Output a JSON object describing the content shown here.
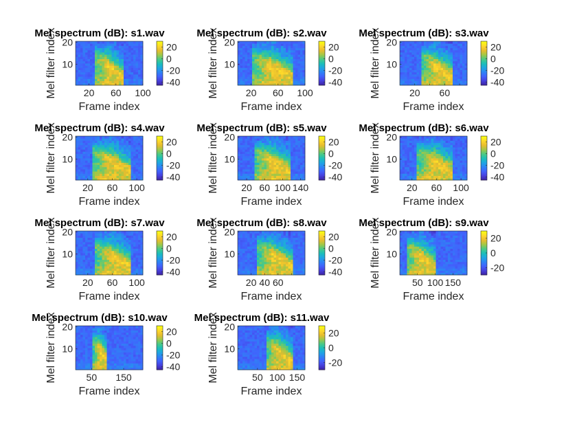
{
  "colormap": [
    "#3e26a8",
    "#4742e0",
    "#4163fd",
    "#2d85f4",
    "#1ea7e1",
    "#1dbfb7",
    "#4bc985",
    "#9fc848",
    "#e6bc2e",
    "#fcd62c",
    "#f9fb15"
  ],
  "chart_data": [
    {
      "type": "heatmap",
      "title": "Mel spectrum (dB): s1.wav",
      "xlabel": "Frame index",
      "ylabel": "Mel filter index",
      "xlim": [
        0,
        100
      ],
      "ylim": [
        0.5,
        20.5
      ],
      "xticks": [
        20,
        60,
        100
      ],
      "xtick_labels": [
        "20",
        "60",
        "100"
      ],
      "yticks": [
        10,
        20
      ],
      "ytick_labels": [
        "10",
        "20"
      ],
      "clim": [
        -45,
        30
      ],
      "cticks": [
        20,
        0,
        -20,
        -40
      ],
      "ctick_labels": [
        "20",
        "0",
        "-20",
        "-40"
      ],
      "speech_frames": [
        28,
        72
      ]
    },
    {
      "type": "heatmap",
      "title": "Mel spectrum (dB): s2.wav",
      "xlabel": "Frame index",
      "ylabel": "Mel filter index",
      "xlim": [
        0,
        100
      ],
      "ylim": [
        0.5,
        20.5
      ],
      "xticks": [
        20,
        60,
        100
      ],
      "xtick_labels": [
        "20",
        "60",
        "100"
      ],
      "yticks": [
        10,
        20
      ],
      "ytick_labels": [
        "10",
        "20"
      ],
      "clim": [
        -45,
        30
      ],
      "cticks": [
        20,
        0,
        -20,
        -40
      ],
      "ctick_labels": [
        "20",
        "0",
        "-20",
        "-40"
      ],
      "speech_frames": [
        22,
        82
      ]
    },
    {
      "type": "heatmap",
      "title": "Mel spectrum (dB): s3.wav",
      "xlabel": "Frame index",
      "ylabel": "Mel filter index",
      "xlim": [
        0,
        90
      ],
      "ylim": [
        0.5,
        20.5
      ],
      "xticks": [
        20,
        40,
        60,
        80
      ],
      "xtick_labels": [
        "20",
        "",
        "60",
        ""
      ],
      "yticks": [
        10,
        20
      ],
      "ytick_labels": [
        "10",
        "20"
      ],
      "clim": [
        -45,
        30
      ],
      "cticks": [
        20,
        0,
        -20,
        -40
      ],
      "ctick_labels": [
        "20",
        "0",
        "-20",
        "-40"
      ],
      "speech_frames": [
        30,
        70
      ]
    },
    {
      "type": "heatmap",
      "title": "Mel spectrum (dB): s4.wav",
      "xlabel": "Frame index",
      "ylabel": "Mel filter index",
      "xlim": [
        0,
        110
      ],
      "ylim": [
        0.5,
        20.5
      ],
      "xticks": [
        20,
        60,
        100
      ],
      "xtick_labels": [
        "20",
        "60",
        "100"
      ],
      "yticks": [
        10,
        20
      ],
      "ytick_labels": [
        "10",
        "20"
      ],
      "clim": [
        -45,
        30
      ],
      "cticks": [
        20,
        0,
        -20,
        -40
      ],
      "ctick_labels": [
        "20",
        "0",
        "-20",
        "-40"
      ],
      "speech_frames": [
        28,
        90
      ]
    },
    {
      "type": "heatmap",
      "title": "Mel spectrum (dB): s5.wav",
      "xlabel": "Frame index",
      "ylabel": "Mel filter index",
      "xlim": [
        0,
        150
      ],
      "ylim": [
        0.5,
        20.5
      ],
      "xticks": [
        20,
        60,
        100,
        140
      ],
      "xtick_labels": [
        "20",
        "60",
        "100",
        "140"
      ],
      "yticks": [
        10,
        20
      ],
      "ytick_labels": [
        "10",
        "20"
      ],
      "clim": [
        -45,
        30
      ],
      "cticks": [
        20,
        0,
        -20,
        -40
      ],
      "ctick_labels": [
        "20",
        "0",
        "-20",
        "-40"
      ],
      "speech_frames": [
        38,
        120
      ]
    },
    {
      "type": "heatmap",
      "title": "Mel spectrum (dB): s6.wav",
      "xlabel": "Frame index",
      "ylabel": "Mel filter index",
      "xlim": [
        0,
        110
      ],
      "ylim": [
        0.5,
        20.5
      ],
      "xticks": [
        20,
        60,
        100
      ],
      "xtick_labels": [
        "20",
        "60",
        "100"
      ],
      "yticks": [
        10,
        20
      ],
      "ytick_labels": [
        "10",
        "20"
      ],
      "clim": [
        -45,
        30
      ],
      "cticks": [
        20,
        0,
        -20,
        -40
      ],
      "ctick_labels": [
        "20",
        "0",
        "-20",
        "-40"
      ],
      "speech_frames": [
        28,
        88
      ]
    },
    {
      "type": "heatmap",
      "title": "Mel spectrum (dB): s7.wav",
      "xlabel": "Frame index",
      "ylabel": "Mel filter index",
      "xlim": [
        0,
        110
      ],
      "ylim": [
        0.5,
        20.5
      ],
      "xticks": [
        20,
        60,
        100
      ],
      "xtick_labels": [
        "20",
        "60",
        "100"
      ],
      "yticks": [
        10,
        20
      ],
      "ytick_labels": [
        "10",
        "20"
      ],
      "clim": [
        -45,
        30
      ],
      "cticks": [
        20,
        0,
        -20,
        -40
      ],
      "ctick_labels": [
        "20",
        "0",
        "-20",
        "-40"
      ],
      "speech_frames": [
        32,
        92
      ]
    },
    {
      "type": "heatmap",
      "title": "Mel spectrum (dB): s8.wav",
      "xlabel": "Frame index",
      "ylabel": "Mel filter index",
      "xlim": [
        0,
        100
      ],
      "ylim": [
        0.5,
        20.5
      ],
      "xticks": [
        20,
        40,
        60,
        80
      ],
      "xtick_labels": [
        "20",
        "40",
        "60",
        ""
      ],
      "yticks": [
        10,
        20
      ],
      "ytick_labels": [
        "10",
        "20"
      ],
      "clim": [
        -45,
        30
      ],
      "cticks": [
        20,
        0,
        -20,
        -40
      ],
      "ctick_labels": [
        "20",
        "0",
        "-20",
        "-40"
      ],
      "speech_frames": [
        28,
        82
      ]
    },
    {
      "type": "heatmap",
      "title": "Mel spectrum (dB): s9.wav",
      "xlabel": "Frame index",
      "ylabel": "Mel filter index",
      "xlim": [
        0,
        190
      ],
      "ylim": [
        0.5,
        20.5
      ],
      "xticks": [
        50,
        100,
        150
      ],
      "xtick_labels": [
        "50",
        "100",
        "150"
      ],
      "yticks": [
        10,
        20
      ],
      "ytick_labels": [
        "10",
        "20"
      ],
      "clim": [
        -30,
        30
      ],
      "cticks": [
        20,
        0,
        -20
      ],
      "ctick_labels": [
        "20",
        "0",
        "-20"
      ],
      "speech_frames": [
        20,
        100
      ]
    },
    {
      "type": "heatmap",
      "title": "Mel spectrum (dB): s10.wav",
      "xlabel": "Frame index",
      "ylabel": "Mel filter index",
      "xlim": [
        0,
        210
      ],
      "ylim": [
        0.5,
        20.5
      ],
      "xticks": [
        50,
        150
      ],
      "xtick_labels": [
        "50",
        "150"
      ],
      "yticks": [
        10,
        20
      ],
      "ytick_labels": [
        "10",
        "20"
      ],
      "clim": [
        -45,
        30
      ],
      "cticks": [
        20,
        0,
        -20,
        -40
      ],
      "ctick_labels": [
        "20",
        "0",
        "-20",
        "-40"
      ],
      "speech_frames": [
        55,
        100
      ]
    },
    {
      "type": "heatmap",
      "title": "Mel spectrum (dB): s11.wav",
      "xlabel": "Frame index",
      "ylabel": "Mel filter index",
      "xlim": [
        0,
        170
      ],
      "ylim": [
        0.5,
        20.5
      ],
      "xticks": [
        50,
        100,
        150
      ],
      "xtick_labels": [
        "50",
        "100",
        "150"
      ],
      "yticks": [
        10,
        20
      ],
      "ytick_labels": [
        "10",
        "20"
      ],
      "clim": [
        -30,
        30
      ],
      "cticks": [
        20,
        0,
        -20
      ],
      "ctick_labels": [
        "20",
        "0",
        "-20"
      ],
      "speech_frames": [
        70,
        140
      ]
    }
  ]
}
